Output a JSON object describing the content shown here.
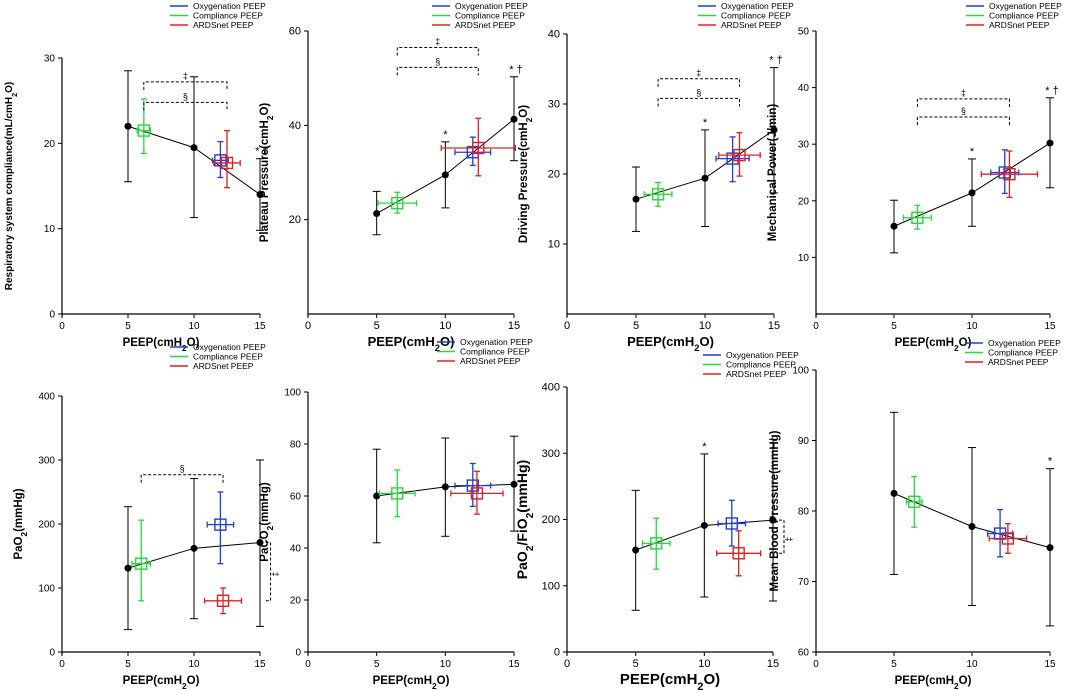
{
  "legend": [
    {
      "name": "Oxygenation PEEP",
      "color": "#1f3fd6"
    },
    {
      "name": "Compliance PEEP",
      "color": "#28d83a"
    },
    {
      "name": "ARDSnet PEEP",
      "color": "#e02020"
    }
  ],
  "chart_data": [
    {
      "type": "scatter",
      "ylabel": "Respiratory system compliance(mL/cmH2O)",
      "xlabel": "PEEP(cmH2O)",
      "xlim": [
        0,
        15
      ],
      "ylim": [
        0,
        30
      ],
      "yticks": [
        0,
        10,
        20,
        30
      ],
      "xticks": [
        0,
        5,
        10,
        15
      ],
      "line": [
        {
          "x": 5,
          "y": 22,
          "lo": 15.5,
          "hi": 28.5
        },
        {
          "x": 10,
          "y": 19.5,
          "lo": 11.3,
          "hi": 27.8
        },
        {
          "x": 15,
          "y": 14,
          "lo": 9.8,
          "hi": 18.2
        }
      ],
      "groups": [
        {
          "name": "Compliance PEEP",
          "x": 6.2,
          "y": 21.5,
          "xerr": 0.5,
          "lo": 18.8,
          "hi": 25.2
        },
        {
          "name": "Oxygenation PEEP",
          "x": 12,
          "y": 18,
          "xerr": 0.6,
          "lo": 16,
          "hi": 20.2
        },
        {
          "name": "ARDSnet PEEP",
          "x": 12.5,
          "y": 17.7,
          "xerr": 1.0,
          "lo": 14.8,
          "hi": 21.5
        }
      ],
      "annotations": [
        {
          "text": "* †",
          "x": 15,
          "y": 18.2
        }
      ],
      "brackets": [
        {
          "text": "‡",
          "x1": 6.2,
          "x2": 12.5,
          "y": 27.2
        },
        {
          "text": "§",
          "x1": 6.2,
          "x2": 12.5,
          "y": 24.8
        }
      ]
    },
    {
      "type": "scatter",
      "ylabel": "Plateau Pressure(cmH2O)",
      "xlabel": "PEEP(cmH2O)",
      "xlim": [
        0,
        15
      ],
      "ylim": [
        0,
        60
      ],
      "yticks": [
        20,
        40,
        60
      ],
      "xticks": [
        0,
        5,
        10,
        15
      ],
      "line": [
        {
          "x": 5,
          "y": 21.3,
          "lo": 16.8,
          "hi": 26
        },
        {
          "x": 10,
          "y": 29.5,
          "lo": 22.5,
          "hi": 36.5
        },
        {
          "x": 15,
          "y": 41.3,
          "lo": 32.5,
          "hi": 50.3
        }
      ],
      "groups": [
        {
          "name": "Compliance PEEP",
          "x": 6.5,
          "y": 23.5,
          "xerr": 1.4,
          "lo": 21.4,
          "hi": 25.8
        },
        {
          "name": "Oxygenation PEEP",
          "x": 12,
          "y": 34.3,
          "xerr": 1.3,
          "lo": 31.5,
          "hi": 37.5
        },
        {
          "name": "ARDSnet PEEP",
          "x": 12.4,
          "y": 35.2,
          "xerr": 2.7,
          "lo": 29.3,
          "hi": 41.5
        }
      ],
      "annotations": [
        {
          "text": "*",
          "x": 10,
          "y": 36.5
        },
        {
          "text": "* †",
          "x": 15,
          "y": 50.3
        }
      ],
      "brackets": [
        {
          "text": "‡",
          "x1": 6.5,
          "x2": 12.4,
          "y": 56.5
        },
        {
          "text": "§",
          "x1": 6.5,
          "x2": 12.4,
          "y": 52.3
        }
      ]
    },
    {
      "type": "scatter",
      "ylabel": "Driving Pressure(cmH2O)",
      "xlabel": "PEEP(cmH2O)",
      "xlim": [
        0,
        15
      ],
      "ylim": [
        0,
        40
      ],
      "yticks": [
        10,
        20,
        30,
        40
      ],
      "xticks": [
        0,
        5,
        10,
        15
      ],
      "line": [
        {
          "x": 5,
          "y": 16.4,
          "lo": 11.8,
          "hi": 21
        },
        {
          "x": 10,
          "y": 19.4,
          "lo": 12.5,
          "hi": 26.3
        },
        {
          "x": 15,
          "y": 26.3,
          "lo": 17.3,
          "hi": 35.2
        }
      ],
      "groups": [
        {
          "name": "Compliance PEEP",
          "x": 6.6,
          "y": 17.1,
          "xerr": 1.0,
          "lo": 15.4,
          "hi": 18.8
        },
        {
          "name": "Oxygenation PEEP",
          "x": 12,
          "y": 22.2,
          "xerr": 1.2,
          "lo": 18.9,
          "hi": 25.3
        },
        {
          "name": "ARDSnet PEEP",
          "x": 12.5,
          "y": 22.7,
          "xerr": 1.5,
          "lo": 19.7,
          "hi": 25.9
        }
      ],
      "annotations": [
        {
          "text": "*",
          "x": 10,
          "y": 26.3
        },
        {
          "text": "* †",
          "x": 15,
          "y": 35.2
        }
      ],
      "brackets": [
        {
          "text": "‡",
          "x1": 6.6,
          "x2": 12.5,
          "y": 33.6
        },
        {
          "text": "§",
          "x1": 6.6,
          "x2": 12.5,
          "y": 30.8
        }
      ]
    },
    {
      "type": "scatter",
      "ylabel": "Mechanical Power(J/min)",
      "xlabel": "PEEP(cmH2O)",
      "xlim": [
        0,
        15
      ],
      "ylim": [
        0,
        50
      ],
      "yticks": [
        10,
        20,
        30,
        40,
        50
      ],
      "xticks": [
        0,
        5,
        10,
        15
      ],
      "line": [
        {
          "x": 5,
          "y": 15.5,
          "lo": 10.8,
          "hi": 20.1
        },
        {
          "x": 10,
          "y": 21.4,
          "lo": 15.5,
          "hi": 27.4
        },
        {
          "x": 15,
          "y": 30.2,
          "lo": 22.3,
          "hi": 38.2
        }
      ],
      "groups": [
        {
          "name": "Compliance PEEP",
          "x": 6.5,
          "y": 17,
          "xerr": 0.9,
          "lo": 15,
          "hi": 19.2
        },
        {
          "name": "Oxygenation PEEP",
          "x": 12.1,
          "y": 25,
          "xerr": 0.9,
          "lo": 21.3,
          "hi": 29
        },
        {
          "name": "ARDSnet PEEP",
          "x": 12.4,
          "y": 24.7,
          "xerr": 1.8,
          "lo": 20.6,
          "hi": 28.8
        }
      ],
      "annotations": [
        {
          "text": "*",
          "x": 10,
          "y": 27.4
        },
        {
          "text": "* †",
          "x": 15,
          "y": 38.2
        }
      ],
      "brackets": [
        {
          "text": "‡",
          "x1": 6.5,
          "x2": 12.4,
          "y": 38
        },
        {
          "text": "§",
          "x1": 6.5,
          "x2": 12.4,
          "y": 34.8
        }
      ]
    },
    {
      "type": "scatter",
      "ylabel": "PaO2(mmHg)",
      "xlabel": "PEEP(cmH2O)",
      "xlim": [
        0,
        15
      ],
      "ylim": [
        0,
        400
      ],
      "yticks": [
        0,
        100,
        200,
        300,
        400
      ],
      "xticks": [
        0,
        5,
        10,
        15
      ],
      "line": [
        {
          "x": 5,
          "y": 131,
          "lo": 35,
          "hi": 227
        },
        {
          "x": 10,
          "y": 162,
          "lo": 52,
          "hi": 271
        },
        {
          "x": 15,
          "y": 171,
          "lo": 40,
          "hi": 300
        }
      ],
      "groups": [
        {
          "name": "Compliance PEEP",
          "x": 6,
          "y": 138,
          "xerr": 0.7,
          "lo": 80,
          "hi": 206
        },
        {
          "name": "Oxygenation PEEP",
          "x": 12,
          "y": 199,
          "xerr": 1.0,
          "lo": 138,
          "hi": 250
        },
        {
          "name": "ARDSnet PEEP",
          "x": 12.2,
          "y": 80,
          "xerr": 1.4,
          "lo": 60,
          "hi": 100
        }
      ],
      "annotations": [],
      "brackets": [
        {
          "text": "§",
          "x1": 6,
          "x2": 12.2,
          "y": 277
        }
      ],
      "vbrackets": [
        {
          "text": "‡",
          "x": 15.8,
          "y1": 171,
          "y2": 80
        }
      ]
    },
    {
      "type": "scatter",
      "ylabel": "PaCO2(mmHg)",
      "xlabel": "PEEP(cmH2O)",
      "xlim": [
        0,
        15
      ],
      "ylim": [
        0,
        100
      ],
      "yticks": [
        0,
        20,
        40,
        60,
        80,
        100
      ],
      "xticks": [
        0,
        5,
        10,
        15
      ],
      "line": [
        {
          "x": 5,
          "y": 60,
          "lo": 42,
          "hi": 78
        },
        {
          "x": 10,
          "y": 63.5,
          "lo": 44.5,
          "hi": 82.3
        },
        {
          "x": 15,
          "y": 64.5,
          "lo": 46.5,
          "hi": 83
        }
      ],
      "groups": [
        {
          "name": "Compliance PEEP",
          "x": 6.5,
          "y": 61,
          "xerr": 1.3,
          "lo": 52,
          "hi": 70
        },
        {
          "name": "Oxygenation PEEP",
          "x": 12,
          "y": 64,
          "xerr": 1.3,
          "lo": 56,
          "hi": 72.5
        },
        {
          "name": "ARDSnet PEEP",
          "x": 12.3,
          "y": 61,
          "xerr": 1.9,
          "lo": 53,
          "hi": 69.5
        }
      ],
      "annotations": [],
      "brackets": []
    },
    {
      "type": "scatter",
      "ylabel": "PaO2/FiO2(mmHg)",
      "xlabel": "PEEP(cmH2O)",
      "xlim": [
        0,
        15
      ],
      "ylim": [
        0,
        400
      ],
      "yticks": [
        0,
        100,
        200,
        300,
        400
      ],
      "xticks": [
        0,
        5,
        10,
        15
      ],
      "line": [
        {
          "x": 5,
          "y": 154,
          "lo": 63,
          "hi": 244
        },
        {
          "x": 10,
          "y": 191,
          "lo": 83,
          "hi": 299
        },
        {
          "x": 15,
          "y": 199,
          "lo": 77,
          "hi": 321
        }
      ],
      "groups": [
        {
          "name": "Compliance PEEP",
          "x": 6.5,
          "y": 164,
          "xerr": 1.0,
          "lo": 125,
          "hi": 202
        },
        {
          "name": "Oxygenation PEEP",
          "x": 12,
          "y": 194,
          "xerr": 1.0,
          "lo": 160,
          "hi": 229
        },
        {
          "name": "ARDSnet PEEP",
          "x": 12.5,
          "y": 149,
          "xerr": 1.6,
          "lo": 115,
          "hi": 183
        }
      ],
      "annotations": [
        {
          "text": "*",
          "x": 10,
          "y": 299
        }
      ],
      "brackets": [],
      "vbrackets": [
        {
          "text": "‡",
          "x": 15.8,
          "y1": 199,
          "y2": 149
        }
      ]
    },
    {
      "type": "scatter",
      "ylabel": "Mean Blood Pressure(mmHg)",
      "xlabel": "PEEP(cmH2O)",
      "xlim": [
        0,
        15
      ],
      "ylim": [
        60,
        100
      ],
      "yticks": [
        60,
        70,
        80,
        90,
        100
      ],
      "xticks": [
        0,
        5,
        10,
        15
      ],
      "line": [
        {
          "x": 5,
          "y": 82.5,
          "lo": 71,
          "hi": 94
        },
        {
          "x": 10,
          "y": 77.8,
          "lo": 66.6,
          "hi": 89
        },
        {
          "x": 15,
          "y": 74.8,
          "lo": 63.7,
          "hi": 86
        }
      ],
      "groups": [
        {
          "name": "Compliance PEEP",
          "x": 6.3,
          "y": 81.3,
          "xerr": 0.5,
          "lo": 77.7,
          "hi": 84.9
        },
        {
          "name": "Oxygenation PEEP",
          "x": 11.8,
          "y": 76.8,
          "xerr": 0.8,
          "lo": 73.5,
          "hi": 80.2
        },
        {
          "name": "ARDSnet PEEP",
          "x": 12.3,
          "y": 76.1,
          "xerr": 1.2,
          "lo": 74,
          "hi": 78.2
        }
      ],
      "annotations": [
        {
          "text": "*",
          "x": 15,
          "y": 86
        }
      ],
      "brackets": []
    }
  ]
}
